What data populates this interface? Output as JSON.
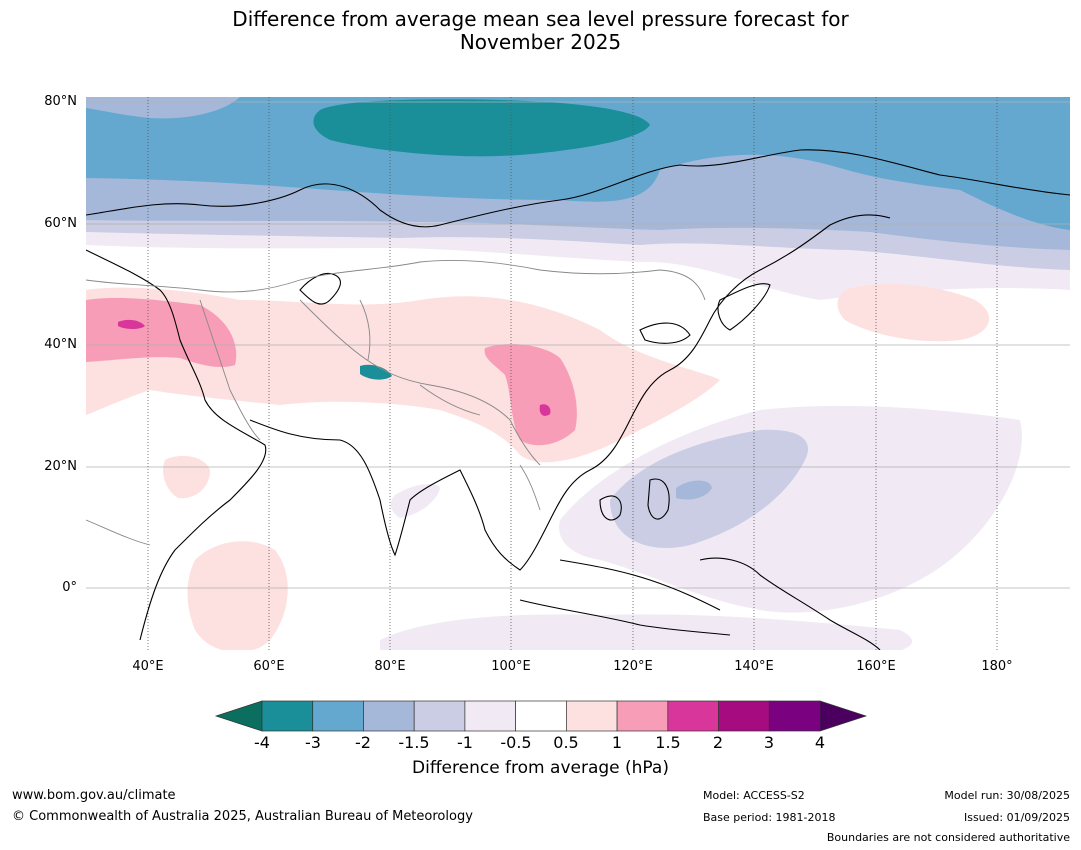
{
  "title": {
    "line1": "Difference from average mean sea level pressure forecast for",
    "line2": "November 2025"
  },
  "map": {
    "region": "Asia",
    "lat_labels": [
      "80°N",
      "60°N",
      "40°N",
      "20°N",
      "0°"
    ],
    "lon_labels": [
      "40°E",
      "60°E",
      "80°E",
      "100°E",
      "120°E",
      "140°E",
      "160°E",
      "180°"
    ]
  },
  "colorbar": {
    "title": "Difference from average (hPa)",
    "ticks": [
      "-4",
      "-3",
      "-2",
      "-1.5",
      "-1",
      "-0.5",
      "0.5",
      "1",
      "1.5",
      "2",
      "3",
      "4"
    ],
    "colors": {
      "below_min": "#0b6e5e",
      "bins": [
        "#1a8f99",
        "#64a8d0",
        "#a5b8d9",
        "#cacde3",
        "#f1eaf5",
        "#ffffff",
        "#fde0e0",
        "#f79db8",
        "#d8369a",
        "#a60b7f",
        "#7a0180"
      ],
      "above_max": "#4b0060"
    }
  },
  "footer": {
    "website": "www.bom.gov.au/climate",
    "copyright": "© Commonwealth of Australia 2025, Australian Bureau of Meteorology",
    "model": "Model: ACCESS-S2",
    "base_period": "Base period: 1981-2018",
    "model_run": "Model run: 30/08/2025",
    "issued": "Issued: 01/09/2025",
    "disclaimer": "Boundaries are not considered authoritative"
  }
}
